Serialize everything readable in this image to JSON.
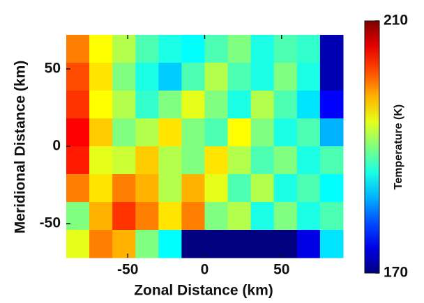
{
  "chart_data": {
    "type": "heatmap",
    "xlabel": "Zonal Distance (km)",
    "ylabel": "Meridional Distance (km)",
    "colorbar_label": "Temperature (K)",
    "x": [
      -82.5,
      -67.5,
      -52.5,
      -37.5,
      -22.5,
      -7.5,
      7.5,
      22.5,
      37.5,
      52.5,
      67.5,
      82.5
    ],
    "y": [
      63,
      45,
      27,
      9,
      -9,
      -27,
      -45,
      -63
    ],
    "z": [
      [
        200,
        195,
        192,
        188,
        186,
        185,
        188,
        190,
        186,
        188,
        187,
        172
      ],
      [
        202,
        196,
        190,
        186,
        183,
        188,
        192,
        188,
        186,
        190,
        186,
        172
      ],
      [
        203,
        195,
        192,
        187,
        190,
        194,
        190,
        186,
        192,
        188,
        184,
        175
      ],
      [
        205,
        197,
        190,
        192,
        196,
        190,
        188,
        195,
        190,
        186,
        188,
        182
      ],
      [
        204,
        194,
        193,
        197,
        192,
        190,
        196,
        192,
        188,
        190,
        186,
        188
      ],
      [
        200,
        196,
        200,
        198,
        192,
        198,
        194,
        188,
        192,
        186,
        188,
        185
      ],
      [
        190,
        198,
        203,
        200,
        196,
        200,
        190,
        192,
        186,
        190,
        186,
        188
      ],
      [
        194,
        200,
        198,
        190,
        185,
        170,
        170,
        170,
        170,
        170,
        174,
        184
      ]
    ],
    "colormap": "jet",
    "clim": [
      170,
      210
    ],
    "cticks": [
      170,
      210
    ],
    "xlim": [
      -90,
      90
    ],
    "xticks": [
      -50,
      0,
      50
    ],
    "ylim": [
      -72,
      72
    ],
    "yticks": [
      50,
      0,
      -50
    ]
  }
}
